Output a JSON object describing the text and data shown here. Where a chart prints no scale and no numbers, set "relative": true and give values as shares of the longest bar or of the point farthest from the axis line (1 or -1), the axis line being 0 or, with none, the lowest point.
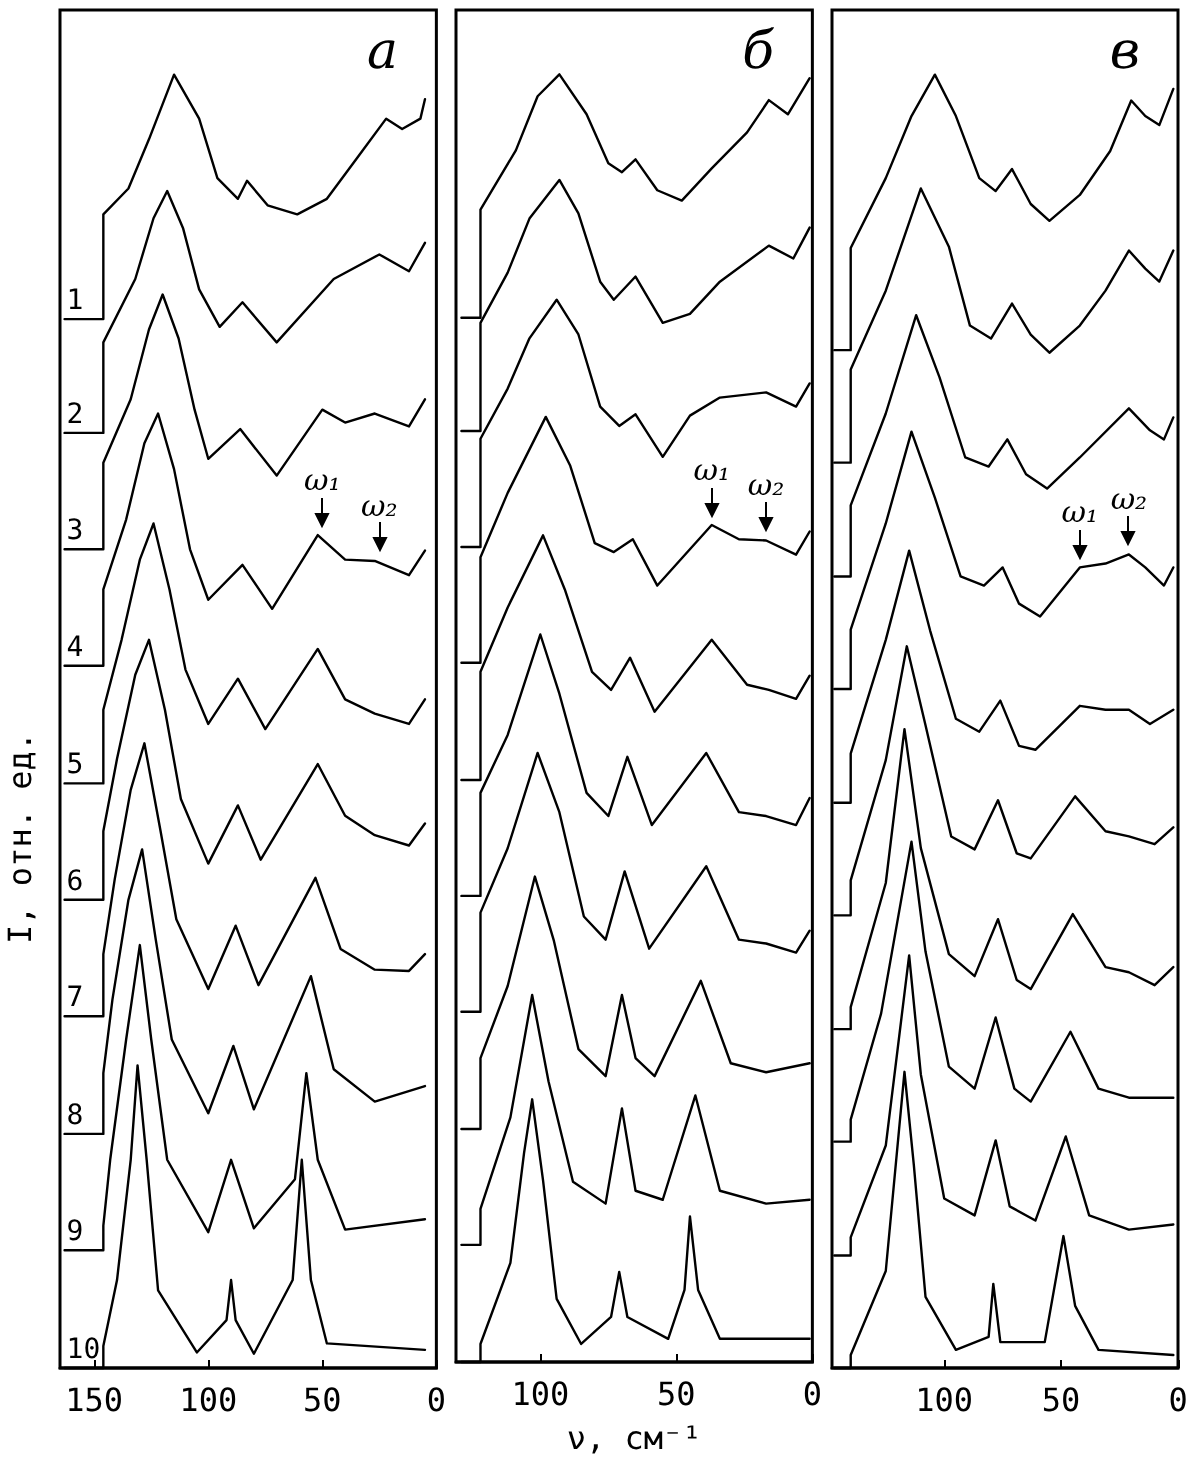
{
  "chart_data": [
    {
      "type": "line",
      "title": "а",
      "ylabel": "I, отн. ед.",
      "relative": true,
      "marker": "none",
      "line_style": "solid",
      "tick_labels": "x",
      "xlim": [
        165,
        0
      ],
      "xticks": [
        150,
        100,
        50,
        0
      ],
      "annotations": [
        {
          "text": "ω₁",
          "x": 50,
          "y": 0.644
        },
        {
          "text": "ω₂",
          "x": 25,
          "y": 0.624
        }
      ],
      "series": [
        {
          "name": "1",
          "color": "#000000",
          "x": [
            163,
            146,
            146,
            135,
            126,
            115,
            104,
            96,
            87,
            83,
            74,
            61,
            48,
            35,
            22,
            15,
            7,
            5
          ],
          "values": [
            0.811,
            0.811,
            0.892,
            0.912,
            0.95,
            1.0,
            0.966,
            0.92,
            0.904,
            0.918,
            0.899,
            0.892,
            0.904,
            0.935,
            0.966,
            0.958,
            0.966,
            0.981
          ]
        },
        {
          "name": "2",
          "color": "#000000",
          "x": [
            163,
            146,
            146,
            132,
            124,
            118,
            111,
            104,
            95,
            85,
            70,
            45,
            25,
            12,
            5
          ],
          "values": [
            0.723,
            0.723,
            0.793,
            0.842,
            0.889,
            0.91,
            0.881,
            0.834,
            0.805,
            0.824,
            0.793,
            0.842,
            0.861,
            0.848,
            0.87
          ]
        },
        {
          "name": "3",
          "color": "#000000",
          "x": [
            163,
            146,
            146,
            134,
            126,
            120,
            113,
            106,
            100,
            86,
            70,
            50,
            40,
            27,
            12,
            5
          ],
          "values": [
            0.633,
            0.633,
            0.7,
            0.749,
            0.803,
            0.83,
            0.796,
            0.741,
            0.703,
            0.726,
            0.69,
            0.741,
            0.731,
            0.738,
            0.728,
            0.749
          ]
        },
        {
          "name": "4",
          "color": "#000000",
          "x": [
            163,
            146,
            146,
            136,
            128,
            122,
            115,
            108,
            100,
            85,
            72,
            52,
            40,
            27,
            12,
            5
          ],
          "values": [
            0.543,
            0.543,
            0.602,
            0.656,
            0.715,
            0.738,
            0.695,
            0.633,
            0.594,
            0.621,
            0.587,
            0.644,
            0.625,
            0.624,
            0.613,
            0.632
          ]
        },
        {
          "name": "5",
          "color": "#000000",
          "x": [
            163,
            146,
            146,
            138,
            130,
            124,
            117,
            110,
            100,
            87,
            75,
            52,
            40,
            27,
            12,
            5
          ],
          "values": [
            0.452,
            0.452,
            0.509,
            0.563,
            0.625,
            0.653,
            0.602,
            0.54,
            0.498,
            0.533,
            0.494,
            0.556,
            0.517,
            0.506,
            0.498,
            0.517
          ]
        },
        {
          "name": "6",
          "color": "#000000",
          "x": [
            163,
            146,
            146,
            140,
            132,
            126,
            119,
            112,
            100,
            87,
            77,
            52,
            40,
            27,
            12,
            5
          ],
          "values": [
            0.362,
            0.362,
            0.415,
            0.471,
            0.536,
            0.563,
            0.509,
            0.44,
            0.39,
            0.435,
            0.393,
            0.467,
            0.427,
            0.412,
            0.404,
            0.421
          ]
        },
        {
          "name": "7",
          "color": "#000000",
          "x": [
            163,
            146,
            146,
            141,
            134,
            128,
            121,
            114,
            100,
            88,
            78,
            53,
            42,
            27,
            12,
            5
          ],
          "values": [
            0.272,
            0.272,
            0.32,
            0.378,
            0.447,
            0.483,
            0.416,
            0.347,
            0.293,
            0.342,
            0.296,
            0.379,
            0.324,
            0.308,
            0.307,
            0.32
          ]
        },
        {
          "name": "8",
          "color": "#000000",
          "x": [
            163,
            146,
            146,
            142,
            135,
            129,
            123,
            116,
            100,
            89,
            80,
            55,
            45,
            27,
            5
          ],
          "values": [
            0.181,
            0.181,
            0.228,
            0.285,
            0.362,
            0.401,
            0.331,
            0.254,
            0.197,
            0.249,
            0.2,
            0.303,
            0.231,
            0.206,
            0.218
          ]
        },
        {
          "name": "9",
          "color": "#000000",
          "x": [
            163,
            146,
            146,
            143,
            136,
            130,
            125,
            118,
            100,
            90,
            80,
            62,
            57,
            52,
            40,
            5
          ],
          "values": [
            0.091,
            0.091,
            0.11,
            0.161,
            0.254,
            0.327,
            0.254,
            0.161,
            0.105,
            0.161,
            0.108,
            0.146,
            0.228,
            0.161,
            0.107,
            0.115
          ]
        },
        {
          "name": "10",
          "color": "#000000",
          "x": [
            163,
            146,
            146,
            140,
            134,
            131,
            127,
            122,
            105,
            92,
            90,
            88,
            80,
            63,
            59,
            55,
            48,
            5
          ],
          "values": [
            0,
            0,
            0.017,
            0.068,
            0.161,
            0.234,
            0.161,
            0.06,
            0.012,
            0.037,
            0.068,
            0.037,
            0.011,
            0.068,
            0.161,
            0.068,
            0.019,
            0.014
          ]
        }
      ]
    },
    {
      "type": "line",
      "title": "б",
      "xlabel": "ν, см⁻¹",
      "relative": true,
      "marker": "none",
      "line_style": "solid",
      "tick_labels": "x",
      "xlim": [
        131,
        0
      ],
      "xticks": [
        100,
        50,
        0
      ],
      "annotations": [
        {
          "text": "ω₁",
          "x": 37,
          "y": 0.65
        },
        {
          "text": "ω₂",
          "x": 17,
          "y": 0.638
        }
      ],
      "series": [
        {
          "color": "#000000",
          "x": [
            129,
            122,
            122,
            109,
            101,
            93,
            83,
            75,
            70,
            65,
            57,
            48,
            37,
            24,
            16,
            9,
            1
          ],
          "values": [
            0.811,
            0.811,
            0.895,
            0.941,
            0.983,
            1.0,
            0.969,
            0.931,
            0.924,
            0.934,
            0.91,
            0.902,
            0.927,
            0.955,
            0.98,
            0.969,
            0.997
          ]
        },
        {
          "color": "#000000",
          "x": [
            129,
            122,
            122,
            112,
            104,
            93,
            86,
            78,
            73,
            65,
            55,
            45,
            34,
            16,
            7,
            1
          ],
          "values": [
            0.723,
            0.723,
            0.807,
            0.846,
            0.888,
            0.918,
            0.892,
            0.839,
            0.825,
            0.843,
            0.807,
            0.814,
            0.839,
            0.867,
            0.857,
            0.881
          ]
        },
        {
          "color": "#000000",
          "x": [
            129,
            122,
            122,
            112,
            104,
            94,
            86,
            78,
            71,
            65,
            55,
            45,
            34,
            17,
            6,
            1
          ],
          "values": [
            0.633,
            0.633,
            0.717,
            0.756,
            0.795,
            0.825,
            0.798,
            0.742,
            0.727,
            0.736,
            0.703,
            0.735,
            0.749,
            0.753,
            0.742,
            0.76
          ]
        },
        {
          "color": "#000000",
          "x": [
            129,
            122,
            122,
            112,
            98,
            89,
            80,
            73,
            66,
            57,
            37,
            27,
            17,
            6,
            1
          ],
          "values": [
            0.543,
            0.543,
            0.625,
            0.675,
            0.734,
            0.696,
            0.636,
            0.629,
            0.639,
            0.603,
            0.65,
            0.639,
            0.638,
            0.627,
            0.645
          ]
        },
        {
          "color": "#000000",
          "x": [
            129,
            122,
            122,
            112,
            99,
            91,
            81,
            74,
            67,
            58,
            37,
            24,
            16,
            6,
            1
          ],
          "values": [
            0.452,
            0.452,
            0.536,
            0.586,
            0.642,
            0.6,
            0.536,
            0.522,
            0.547,
            0.505,
            0.561,
            0.526,
            0.522,
            0.515,
            0.533
          ]
        },
        {
          "color": "#000000",
          "x": [
            129,
            122,
            122,
            112,
            100,
            93,
            83,
            75,
            68,
            59,
            39,
            27,
            17,
            6,
            1
          ],
          "values": [
            0.362,
            0.362,
            0.442,
            0.487,
            0.565,
            0.519,
            0.442,
            0.424,
            0.47,
            0.417,
            0.473,
            0.427,
            0.424,
            0.417,
            0.438
          ]
        },
        {
          "color": "#000000",
          "x": [
            129,
            122,
            122,
            112,
            101,
            93,
            84,
            76,
            69,
            60,
            39,
            27,
            17,
            6,
            1
          ],
          "values": [
            0.272,
            0.272,
            0.349,
            0.399,
            0.473,
            0.427,
            0.346,
            0.328,
            0.381,
            0.321,
            0.385,
            0.328,
            0.325,
            0.318,
            0.335
          ]
        },
        {
          "color": "#000000",
          "x": [
            129,
            122,
            122,
            112,
            102,
            95,
            86,
            76,
            70,
            65,
            58,
            41,
            30,
            17,
            1
          ],
          "values": [
            0.181,
            0.181,
            0.236,
            0.292,
            0.377,
            0.327,
            0.243,
            0.222,
            0.285,
            0.236,
            0.222,
            0.296,
            0.232,
            0.225,
            0.232
          ]
        },
        {
          "color": "#000000",
          "x": [
            129,
            122,
            122,
            111,
            103,
            97,
            88,
            76,
            70,
            65,
            55,
            43,
            34,
            17,
            1
          ],
          "values": [
            0.091,
            0.091,
            0.119,
            0.19,
            0.285,
            0.218,
            0.14,
            0.123,
            0.197,
            0.133,
            0.126,
            0.207,
            0.133,
            0.123,
            0.126
          ]
        },
        {
          "color": "#000000",
          "x": [
            129,
            122,
            122,
            111,
            106,
            103,
            99,
            94,
            85,
            74,
            71,
            68,
            53,
            47,
            45,
            42,
            34,
            1
          ],
          "values": [
            0,
            0,
            0.014,
            0.077,
            0.162,
            0.204,
            0.141,
            0.049,
            0.014,
            0.035,
            0.07,
            0.035,
            0.018,
            0.056,
            0.113,
            0.056,
            0.018,
            0.018
          ]
        }
      ]
    },
    {
      "type": "line",
      "title": "в",
      "relative": true,
      "marker": "none",
      "line_style": "solid",
      "tick_labels": "x",
      "xlim": [
        148,
        0
      ],
      "xticks": [
        100,
        50,
        0
      ],
      "annotations": [
        {
          "text": "ω₁",
          "x": 42,
          "y": 0.619
        },
        {
          "text": "ω₂",
          "x": 21,
          "y": 0.629
        }
      ],
      "series": [
        {
          "color": "#000000",
          "x": [
            147,
            140,
            140,
            125,
            114,
            104,
            95,
            85,
            78,
            71,
            63,
            55,
            42,
            29,
            20,
            14,
            8,
            2
          ],
          "values": [
            0.787,
            0.787,
            0.866,
            0.92,
            0.968,
            1.0,
            0.968,
            0.92,
            0.91,
            0.927,
            0.9,
            0.887,
            0.907,
            0.941,
            0.98,
            0.968,
            0.961,
            0.989
          ]
        },
        {
          "color": "#000000",
          "x": [
            147,
            140,
            140,
            125,
            110,
            98,
            89,
            80,
            71,
            63,
            55,
            42,
            31,
            21,
            14,
            8,
            2
          ],
          "values": [
            0.7,
            0.7,
            0.772,
            0.833,
            0.912,
            0.867,
            0.806,
            0.796,
            0.823,
            0.799,
            0.785,
            0.806,
            0.833,
            0.864,
            0.85,
            0.84,
            0.864
          ]
        },
        {
          "color": "#000000",
          "x": [
            147,
            140,
            140,
            125,
            112,
            102,
            91,
            81,
            73,
            65,
            56,
            42,
            21,
            12,
            6,
            2
          ],
          "values": [
            0.612,
            0.612,
            0.667,
            0.738,
            0.814,
            0.766,
            0.704,
            0.697,
            0.718,
            0.691,
            0.68,
            0.704,
            0.742,
            0.725,
            0.718,
            0.735
          ]
        },
        {
          "color": "#000000",
          "x": [
            147,
            140,
            140,
            125,
            114,
            104,
            93,
            83,
            75,
            68,
            59,
            42,
            31,
            21,
            14,
            6,
            2
          ],
          "values": [
            0.525,
            0.525,
            0.571,
            0.653,
            0.724,
            0.673,
            0.612,
            0.605,
            0.619,
            0.591,
            0.581,
            0.619,
            0.622,
            0.629,
            0.619,
            0.605,
            0.619
          ]
        },
        {
          "color": "#000000",
          "x": [
            147,
            140,
            140,
            125,
            115,
            106,
            95,
            85,
            76,
            68,
            61,
            42,
            31,
            21,
            12,
            2
          ],
          "values": [
            0.437,
            0.437,
            0.475,
            0.563,
            0.632,
            0.57,
            0.502,
            0.492,
            0.516,
            0.481,
            0.478,
            0.512,
            0.509,
            0.509,
            0.498,
            0.509
          ]
        },
        {
          "color": "#000000",
          "x": [
            147,
            140,
            140,
            125,
            116,
            108,
            97,
            87,
            77,
            69,
            63,
            44,
            31,
            21,
            10,
            2
          ],
          "values": [
            0.35,
            0.35,
            0.377,
            0.47,
            0.558,
            0.497,
            0.411,
            0.401,
            0.439,
            0.398,
            0.394,
            0.442,
            0.415,
            0.411,
            0.405,
            0.418
          ]
        },
        {
          "color": "#000000",
          "x": [
            147,
            140,
            140,
            125,
            117,
            110,
            98,
            87,
            77,
            69,
            63,
            45,
            31,
            21,
            10,
            2
          ],
          "values": [
            0.262,
            0.262,
            0.279,
            0.375,
            0.494,
            0.402,
            0.32,
            0.303,
            0.347,
            0.3,
            0.293,
            0.351,
            0.31,
            0.306,
            0.296,
            0.31
          ]
        },
        {
          "color": "#000000",
          "x": [
            147,
            140,
            140,
            127,
            114,
            108,
            98,
            87,
            78,
            70,
            63,
            46,
            34,
            21,
            2
          ],
          "values": [
            0.175,
            0.175,
            0.192,
            0.274,
            0.407,
            0.322,
            0.233,
            0.216,
            0.271,
            0.216,
            0.206,
            0.26,
            0.216,
            0.209,
            0.209
          ]
        },
        {
          "color": "#000000",
          "x": [
            147,
            140,
            140,
            125,
            115,
            110,
            100,
            87,
            78,
            72,
            61,
            48,
            38,
            21,
            2
          ],
          "values": [
            0.087,
            0.087,
            0.101,
            0.172,
            0.319,
            0.227,
            0.131,
            0.118,
            0.176,
            0.125,
            0.114,
            0.179,
            0.118,
            0.107,
            0.111
          ]
        },
        {
          "color": "#000000",
          "x": [
            147,
            140,
            140,
            125,
            117,
            113,
            108,
            95,
            81,
            79,
            76,
            57,
            49,
            44,
            34,
            2
          ],
          "values": [
            0,
            0,
            0.01,
            0.075,
            0.229,
            0.157,
            0.055,
            0.014,
            0.024,
            0.065,
            0.02,
            0.02,
            0.102,
            0.048,
            0.014,
            0.01
          ]
        }
      ]
    }
  ]
}
